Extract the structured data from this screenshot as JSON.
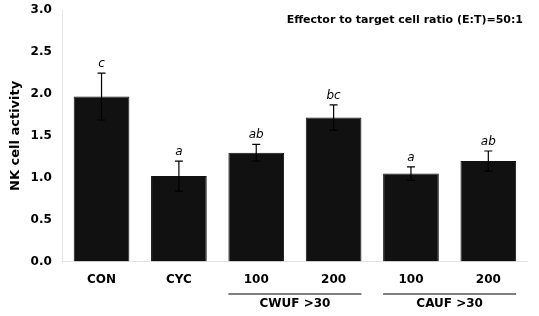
{
  "chart_data": {
    "type": "bar",
    "categories": [
      "CON",
      "CYC",
      "100",
      "200",
      "100",
      "200"
    ],
    "groups": [
      null,
      null,
      "CWUF >30",
      "CWUF >30",
      "CAUF >30",
      "CAUF >30"
    ],
    "values": [
      1.97,
      1.02,
      1.3,
      1.72,
      1.05,
      1.2
    ],
    "errors": [
      0.28,
      0.18,
      0.1,
      0.15,
      0.08,
      0.12
    ],
    "significance_labels": [
      "c",
      "a",
      "ab",
      "bc",
      "a",
      "ab"
    ],
    "color": "#111111",
    "ylabel": "NK cell activity",
    "annotation": "Effector to target cell ratio (E:T)=50:1",
    "ylim": [
      0.0,
      3.0
    ],
    "yticks": [
      {
        "value": 0.0,
        "label": "0.0"
      },
      0.5,
      {
        "value": 1.0,
        "label": "1.0"
      },
      1.5,
      {
        "value": 2.0,
        "label": "2.0"
      },
      2.5,
      {
        "value": 3.0,
        "label": "3.0"
      }
    ],
    "grid": false
  }
}
